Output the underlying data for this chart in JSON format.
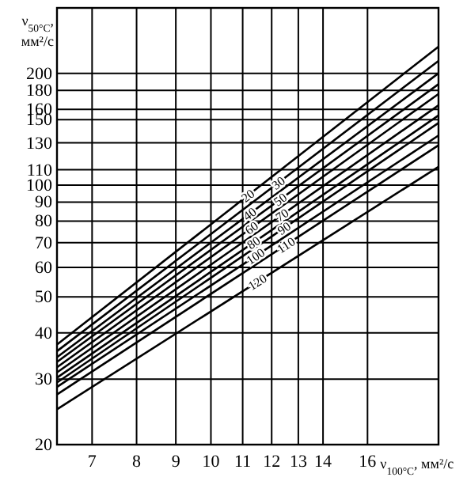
{
  "chart_data": {
    "type": "line",
    "xlabel": "ν$_{100°C}$, мм²/с",
    "ylabel": "ν$_{50°C}$,\nмм²/с",
    "log": "xy",
    "xlim": [
      6.3,
      19.8
    ],
    "ylim": [
      20,
      300
    ],
    "xticks": [
      7,
      8,
      9,
      10,
      11,
      12,
      13,
      14,
      16
    ],
    "yticks": [
      20,
      30,
      40,
      50,
      60,
      70,
      80,
      90,
      100,
      110,
      130,
      150,
      160,
      180,
      200
    ],
    "grid": true,
    "marker": "none",
    "line_style": "solid",
    "x": [
      6.3,
      19.8
    ],
    "series": [
      {
        "name": "20",
        "color": "#000000",
        "values": [
          37.2,
          236
        ]
      },
      {
        "name": "30",
        "color": "#000000",
        "values": [
          35.7,
          216
        ]
      },
      {
        "name": "40",
        "color": "#000000",
        "values": [
          34.4,
          200
        ]
      },
      {
        "name": "50",
        "color": "#000000",
        "values": [
          33.4,
          187
        ]
      },
      {
        "name": "60",
        "color": "#000000",
        "values": [
          32.3,
          176
        ]
      },
      {
        "name": "70",
        "color": "#000000",
        "values": [
          31.3,
          164
        ]
      },
      {
        "name": "80",
        "color": "#000000",
        "values": [
          30.3,
          154
        ]
      },
      {
        "name": "90",
        "color": "#000000",
        "values": [
          29.4,
          147
        ]
      },
      {
        "name": "100",
        "color": "#000000",
        "values": [
          28.6,
          136
        ]
      },
      {
        "name": "110",
        "color": "#000000",
        "values": [
          27.3,
          128
        ]
      },
      {
        "name": "120",
        "color": "#000000",
        "values": [
          24.9,
          112
        ]
      }
    ]
  }
}
